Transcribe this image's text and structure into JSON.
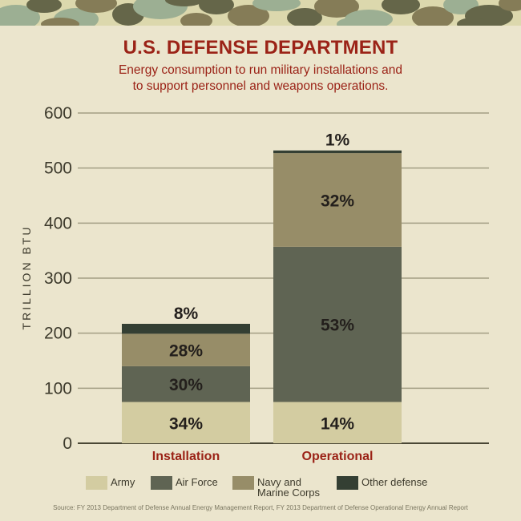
{
  "header": {
    "title": "U.S. DEFENSE DEPARTMENT",
    "subtitle_line1": "Energy consumption to run military installations and",
    "subtitle_line2": "to support personnel and weapons operations."
  },
  "source": "Source: FY 2013 Department of Defense Annual Energy Management Report, FY 2013 Department of Defense Operational Energy Annual Report",
  "colors": {
    "background": "#ebe5cd",
    "title": "#9b2317",
    "army": "#d3cca1",
    "air_force": "#5f6453",
    "navy_marine": "#978d68",
    "other_defense": "#343f33",
    "camo": [
      "#dcd8ad",
      "#9caf93",
      "#656649",
      "#857c57"
    ]
  },
  "chart_data": {
    "type": "bar",
    "stacked": true,
    "title": "U.S. DEFENSE DEPARTMENT",
    "subtitle": "Energy consumption to run military installations and to support personnel and weapons operations.",
    "xlabel": "",
    "ylabel": "TRILLION BTU",
    "ylim": [
      0,
      600
    ],
    "yticks": [
      0,
      100,
      200,
      300,
      400,
      500,
      600
    ],
    "grid": true,
    "legend_position": "bottom",
    "categories": [
      "Installation",
      "Operational"
    ],
    "series": [
      {
        "name": "Army",
        "key": "army",
        "values": [
          75,
          75
        ],
        "labels": [
          "34%",
          "14%"
        ]
      },
      {
        "name": "Air Force",
        "key": "air_force",
        "values": [
          65,
          282
        ],
        "labels": [
          "30%",
          "53%"
        ]
      },
      {
        "name": "Navy and Marine Corps",
        "key": "navy_marine",
        "values": [
          59,
          170
        ],
        "labels": [
          "28%",
          "32%"
        ]
      },
      {
        "name": "Other defense",
        "key": "other_defense",
        "values": [
          18,
          5
        ],
        "labels": [
          "8%",
          "1%"
        ]
      }
    ],
    "legend": [
      {
        "key": "army",
        "lines": [
          "Army"
        ]
      },
      {
        "key": "air_force",
        "lines": [
          "Air Force"
        ]
      },
      {
        "key": "navy_marine",
        "lines": [
          "Navy and",
          "Marine Corps"
        ]
      },
      {
        "key": "other_defense",
        "lines": [
          "Other defense"
        ]
      }
    ]
  }
}
